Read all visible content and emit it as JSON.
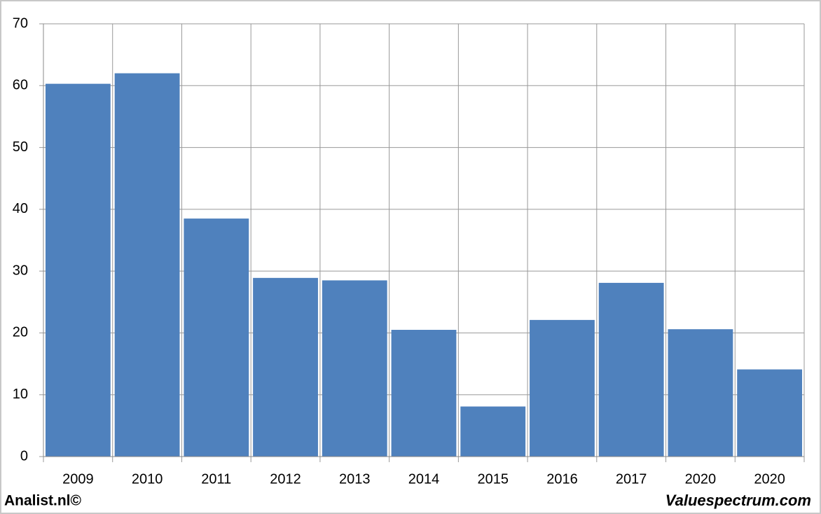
{
  "chart_data": {
    "type": "bar",
    "categories": [
      "2009",
      "2010",
      "2011",
      "2012",
      "2013",
      "2014",
      "2015",
      "2016",
      "2017",
      "2020",
      "2020"
    ],
    "values": [
      60.3,
      62,
      38.5,
      28.9,
      28.5,
      20.5,
      8.1,
      22.1,
      28.1,
      20.6,
      14.1
    ],
    "color": "#4f81bd",
    "ylim": [
      0,
      70
    ],
    "yticks": [
      0,
      10,
      20,
      30,
      40,
      50,
      60,
      70
    ],
    "grid": true,
    "source_left": "Analist.nl©",
    "source_right": "Valuespectrum.com"
  }
}
